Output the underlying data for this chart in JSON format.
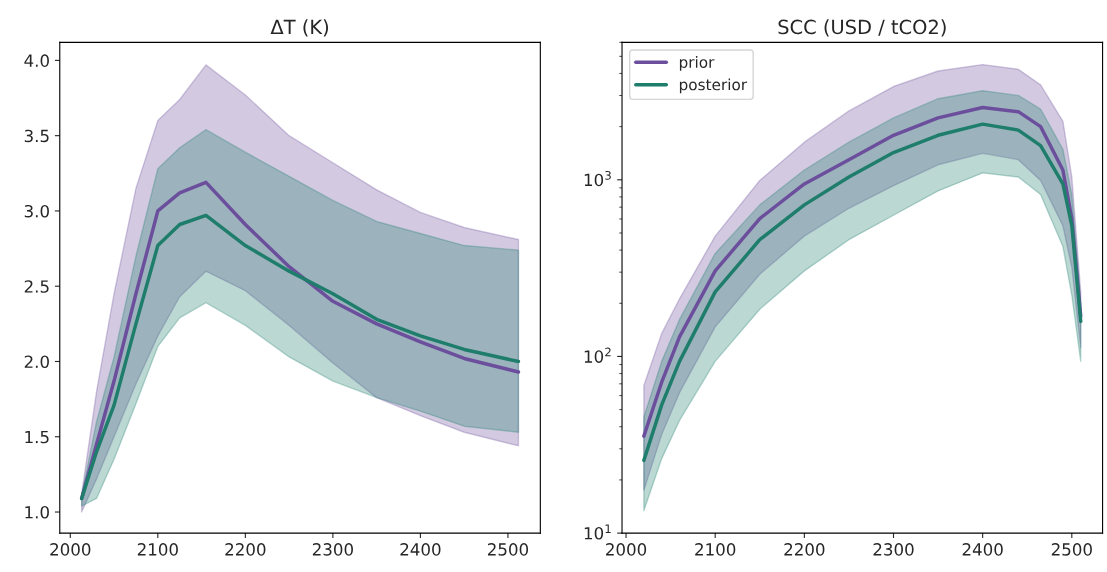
{
  "chart_data": [
    {
      "type": "line",
      "title": "ΔT (K)",
      "x": [
        2013,
        2030,
        2050,
        2075,
        2100,
        2125,
        2155,
        2200,
        2250,
        2300,
        2350,
        2400,
        2450,
        2512
      ],
      "xlim": [
        1988,
        2537
      ],
      "xticks": [
        2000,
        2100,
        2200,
        2300,
        2400,
        2500
      ],
      "ylim": [
        0.86,
        4.12
      ],
      "yticks": [
        {
          "value": 1.0,
          "label": "1.0"
        },
        {
          "value": 1.5,
          "label": "1.5"
        },
        {
          "value": 2.0,
          "label": "2.0"
        },
        {
          "value": 2.5,
          "label": "2.5"
        },
        {
          "value": 3.0,
          "label": "3.0"
        },
        {
          "value": 3.5,
          "label": "3.5"
        },
        {
          "value": 4.0,
          "label": "4.0"
        }
      ],
      "grid": false,
      "legend": false,
      "series": [
        {
          "color": "#6c4f9c",
          "values": [
            1.09,
            1.45,
            1.87,
            2.45,
            3.0,
            3.12,
            3.19,
            2.91,
            2.63,
            2.4,
            2.25,
            2.13,
            2.02,
            1.93
          ],
          "lower": [
            1.0,
            1.22,
            1.5,
            1.85,
            2.17,
            2.43,
            2.6,
            2.47,
            2.24,
            1.99,
            1.76,
            1.64,
            1.53,
            1.44
          ],
          "upper": [
            1.12,
            1.8,
            2.45,
            3.15,
            3.6,
            3.74,
            3.97,
            3.77,
            3.5,
            3.32,
            3.14,
            2.99,
            2.89,
            2.81
          ]
        },
        {
          "color": "#1f7d6c",
          "values": [
            1.09,
            1.4,
            1.71,
            2.25,
            2.77,
            2.91,
            2.97,
            2.77,
            2.6,
            2.45,
            2.28,
            2.17,
            2.08,
            2.0
          ],
          "lower": [
            1.04,
            1.09,
            1.35,
            1.72,
            2.1,
            2.29,
            2.39,
            2.24,
            2.03,
            1.87,
            1.76,
            1.67,
            1.57,
            1.53
          ],
          "upper": [
            1.11,
            1.6,
            2.03,
            2.7,
            3.28,
            3.42,
            3.54,
            3.39,
            3.23,
            3.07,
            2.93,
            2.85,
            2.77,
            2.74
          ]
        }
      ]
    },
    {
      "type": "line",
      "title": "SCC (USD / tCO2)",
      "x": [
        2020,
        2040,
        2060,
        2100,
        2150,
        2200,
        2250,
        2300,
        2350,
        2400,
        2440,
        2465,
        2490,
        2500,
        2510
      ],
      "xlim": [
        1995.5,
        2534.5
      ],
      "xticks": [
        2000,
        2100,
        2200,
        2300,
        2400,
        2500
      ],
      "log": "y",
      "ylim": [
        10,
        6000
      ],
      "yticks": [
        {
          "value": 10,
          "label": "10$^{1}$"
        },
        {
          "value": 100,
          "label": "10$^{2}$"
        },
        {
          "value": 1000,
          "label": "10$^{3}$"
        }
      ],
      "grid": false,
      "legend": "top left",
      "series": [
        {
          "name": "prior",
          "color": "#6c4f9c",
          "values": [
            35.4,
            71.5,
            129,
            305,
            603,
            947,
            1300,
            1786,
            2240,
            2565,
            2430,
            2000,
            1136,
            603,
            169
          ],
          "lower": [
            17.5,
            36.2,
            62.4,
            147,
            292,
            480,
            690,
            926,
            1216,
            1412,
            1300,
            991,
            550,
            319,
            112
          ],
          "upper": [
            68.5,
            135,
            212,
            480,
            991,
            1633,
            2455,
            3373,
            4130,
            4487,
            4220,
            3443,
            2143,
            1037,
            232
          ]
        },
        {
          "name": "posterior",
          "color": "#1f7d6c",
          "values": [
            25.8,
            53.2,
            93.8,
            232,
            458,
            721,
            1037,
            1426,
            1786,
            2065,
            1911,
            1560,
            947,
            550,
            158
          ],
          "lower": [
            13.4,
            26.4,
            43.4,
            93.8,
            185,
            305,
            458,
            630,
            865,
            1094,
            1037,
            826,
            419,
            222,
            93.8
          ],
          "upper": [
            45.4,
            93.8,
            162,
            383,
            721,
            1136,
            1633,
            2240,
            2877,
            3192,
            3003,
            2512,
            1489,
            826,
            203
          ]
        }
      ]
    }
  ]
}
